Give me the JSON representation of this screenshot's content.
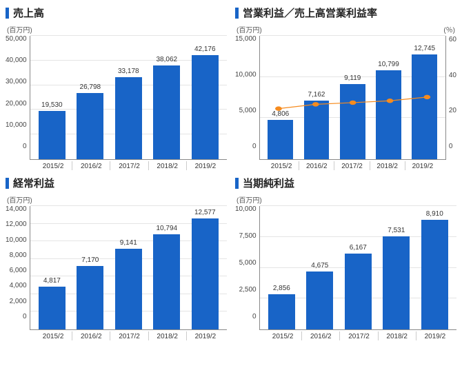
{
  "colors": {
    "bar": "#1864c7",
    "line": "#f68b1e",
    "marker": "#f68b1e",
    "grid": "#e4e4e4",
    "axis": "#888",
    "text": "#333",
    "accent_bar": "#1864c7"
  },
  "panels": [
    {
      "id": "sales",
      "title": "売上高",
      "ylabel": "(百万円)",
      "type": "bar",
      "categories": [
        "2015/2",
        "2016/2",
        "2017/2",
        "2018/2",
        "2019/2"
      ],
      "values": [
        19530,
        26798,
        33178,
        38062,
        42176
      ],
      "ylim": [
        0,
        50000
      ],
      "ytick_step": 10000,
      "bar_color": "#1864c7"
    },
    {
      "id": "op_income",
      "title": "営業利益／売上高営業利益率",
      "ylabel": "(百万円)",
      "ylabel2": "(％)",
      "type": "bar_line",
      "categories": [
        "2015/2",
        "2016/2",
        "2017/2",
        "2018/2",
        "2019/2"
      ],
      "values": [
        4806,
        7162,
        9119,
        10799,
        12745
      ],
      "line_values": [
        24.6,
        26.7,
        27.5,
        28.4,
        30.2
      ],
      "ylim": [
        0,
        15000
      ],
      "ytick_step": 5000,
      "ylim2": [
        0,
        60
      ],
      "ytick_step2": 20,
      "bar_color": "#1864c7",
      "line_color": "#f68b1e",
      "marker_color": "#f68b1e"
    },
    {
      "id": "ordinary",
      "title": "経常利益",
      "ylabel": "(百万円)",
      "type": "bar",
      "categories": [
        "2015/2",
        "2016/2",
        "2017/2",
        "2018/2",
        "2019/2"
      ],
      "values": [
        4817,
        7170,
        9141,
        10794,
        12577
      ],
      "ylim": [
        0,
        14000
      ],
      "ytick_step": 2000,
      "bar_color": "#1864c7"
    },
    {
      "id": "net_income",
      "title": "当期純利益",
      "ylabel": "(百万円)",
      "type": "bar",
      "categories": [
        "2015/2",
        "2016/2",
        "2017/2",
        "2018/2",
        "2019/2"
      ],
      "values": [
        2856,
        4675,
        6167,
        7531,
        8910
      ],
      "ylim": [
        0,
        10000
      ],
      "ytick_step": 2500,
      "bar_color": "#1864c7"
    }
  ]
}
